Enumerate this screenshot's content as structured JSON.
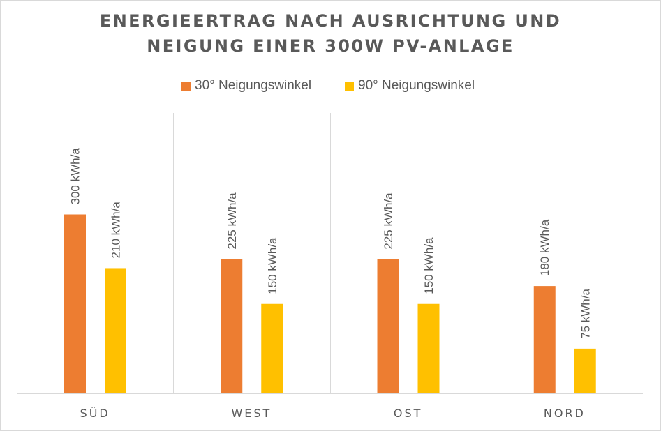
{
  "chart_data": {
    "type": "bar",
    "title_lines": [
      "ENERGIEERTRAG NACH AUSRICHTUNG UND",
      "NEIGUNG EINER 300W PV-ANLAGE"
    ],
    "categories": [
      "SÜD",
      "WEST",
      "OST",
      "NORD"
    ],
    "series": [
      {
        "name": "30° Neigungswinkel",
        "color": "#ED7D31",
        "values": [
          300,
          225,
          225,
          180
        ],
        "labels": [
          "300 kWh/a",
          "225 kWh/a",
          "225 kWh/a",
          "180 kWh/a"
        ]
      },
      {
        "name": "90° Neigungswinkel",
        "color": "#FFC000",
        "values": [
          210,
          150,
          150,
          75
        ],
        "labels": [
          "210 kWh/a",
          "150 kWh/a",
          "150 kWh/a",
          "75 kWh/a"
        ]
      }
    ],
    "unit": "kWh/a",
    "ylim": [
      0,
      400
    ],
    "grid": "vertical category separators",
    "legend_position": "top"
  }
}
